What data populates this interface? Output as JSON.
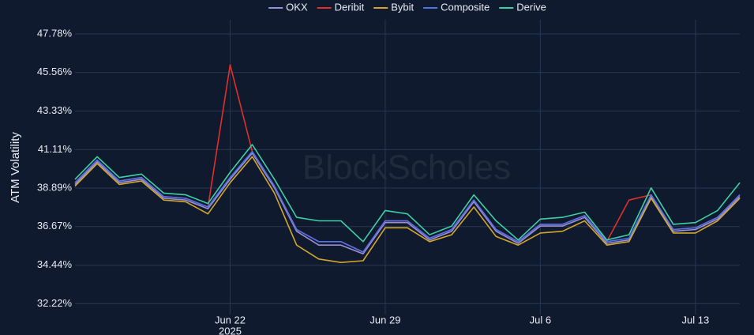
{
  "chart_data": {
    "type": "line",
    "watermark": "BlockScholes",
    "ylabel": "ATM Volatility",
    "x": [
      "2025-06-15",
      "2025-06-16",
      "2025-06-17",
      "2025-06-18",
      "2025-06-19",
      "2025-06-20",
      "2025-06-21",
      "2025-06-22",
      "2025-06-23",
      "2025-06-24",
      "2025-06-25",
      "2025-06-26",
      "2025-06-27",
      "2025-06-28",
      "2025-06-29",
      "2025-06-30",
      "2025-07-01",
      "2025-07-02",
      "2025-07-03",
      "2025-07-04",
      "2025-07-05",
      "2025-07-06",
      "2025-07-07",
      "2025-07-08",
      "2025-07-09",
      "2025-07-10",
      "2025-07-11",
      "2025-07-12",
      "2025-07-13",
      "2025-07-14",
      "2025-07-15"
    ],
    "xlim": [
      "2025-06-15",
      "2025-07-15"
    ],
    "xticks": [
      {
        "value": "2025-06-22",
        "label": "Jun 22"
      },
      {
        "value": "2025-06-29",
        "label": "Jun 29"
      },
      {
        "value": "2025-07-06",
        "label": "Jul 6"
      },
      {
        "value": "2025-07-13",
        "label": "Jul 13"
      }
    ],
    "xtick_year": "2025",
    "ylim": [
      31.6,
      48.6
    ],
    "yticks": [
      {
        "value": 32.22,
        "label": "32.22%"
      },
      {
        "value": 34.44,
        "label": "34.44%"
      },
      {
        "value": 36.67,
        "label": "36.67%"
      },
      {
        "value": 38.89,
        "label": "38.89%"
      },
      {
        "value": 41.11,
        "label": "41.11%"
      },
      {
        "value": 43.33,
        "label": "43.33%"
      },
      {
        "value": 45.56,
        "label": "45.56%"
      },
      {
        "value": 47.78,
        "label": "47.78%"
      }
    ],
    "grid": true,
    "legend": "top",
    "series": [
      {
        "name": "OKX",
        "color": "#9b8fd6",
        "values": [
          39.1,
          40.4,
          39.2,
          39.4,
          38.3,
          38.2,
          37.7,
          39.4,
          40.9,
          38.9,
          36.4,
          35.6,
          35.6,
          35.1,
          36.9,
          36.9,
          35.9,
          36.4,
          38.1,
          36.4,
          35.7,
          36.7,
          36.7,
          37.2,
          35.7,
          35.9,
          38.4,
          36.4,
          36.5,
          37.1,
          38.4
        ]
      },
      {
        "name": "Deribit",
        "color": "#e0302a",
        "values": [
          39.2,
          40.5,
          39.3,
          39.5,
          38.4,
          38.3,
          37.8,
          46.0,
          41.0,
          39.0,
          36.5,
          35.8,
          35.8,
          35.2,
          37.0,
          37.0,
          36.0,
          36.5,
          38.2,
          36.5,
          35.8,
          36.8,
          36.8,
          37.3,
          35.8,
          38.2,
          38.5,
          36.5,
          36.6,
          37.2,
          38.5
        ]
      },
      {
        "name": "Bybit",
        "color": "#d4a72c",
        "values": [
          39.0,
          40.3,
          39.1,
          39.3,
          38.2,
          38.1,
          37.4,
          39.2,
          40.7,
          38.6,
          35.6,
          34.8,
          34.6,
          34.7,
          36.6,
          36.6,
          35.8,
          36.2,
          37.8,
          36.1,
          35.6,
          36.3,
          36.4,
          37.0,
          35.6,
          35.8,
          38.3,
          36.3,
          36.3,
          37.0,
          38.3
        ]
      },
      {
        "name": "Composite",
        "color": "#4f74e8",
        "values": [
          39.2,
          40.5,
          39.3,
          39.5,
          38.4,
          38.3,
          37.8,
          39.5,
          41.0,
          39.0,
          36.5,
          35.8,
          35.8,
          35.2,
          37.0,
          37.0,
          36.0,
          36.5,
          38.2,
          36.5,
          35.8,
          36.8,
          36.8,
          37.3,
          35.8,
          36.0,
          38.5,
          36.5,
          36.6,
          37.2,
          38.5
        ]
      },
      {
        "name": "Derive",
        "color": "#3fcfa6",
        "values": [
          39.4,
          40.7,
          39.5,
          39.7,
          38.6,
          38.5,
          38.0,
          39.8,
          41.4,
          39.4,
          37.2,
          37.0,
          37.0,
          35.8,
          37.6,
          37.4,
          36.2,
          36.7,
          38.5,
          37.0,
          35.9,
          37.1,
          37.2,
          37.5,
          35.9,
          36.2,
          38.9,
          36.8,
          36.9,
          37.6,
          39.2
        ]
      }
    ]
  }
}
